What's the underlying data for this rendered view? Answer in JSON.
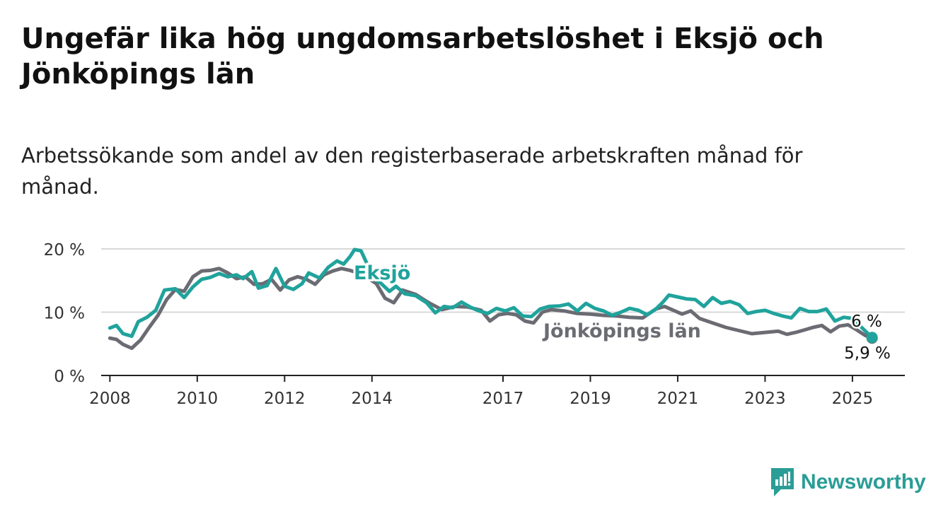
{
  "title": "Ungefär lika hög ungdomsarbetslöshet i Eksjö och Jönköpings län",
  "subtitle": "Arbetssökande som andel av den registerbaserade arbetskraften månad för månad.",
  "brand": {
    "name": "Newsworthy",
    "icon": "newsworthy-logo-icon",
    "color": "#2a9d96"
  },
  "chart_data": {
    "type": "line",
    "title": "Ungefär lika hög ungdomsarbetslöshet i Eksjö och Jönköpings län",
    "xlabel": "",
    "ylabel": "",
    "xlim": [
      2007.8,
      2026.2
    ],
    "ylim": [
      0,
      20
    ],
    "y_ticks": [
      {
        "value": 0,
        "label": "0 %"
      },
      {
        "value": 10,
        "label": "10 %"
      },
      {
        "value": 20,
        "label": "20 %"
      }
    ],
    "x_ticks": [
      {
        "value": 2008,
        "label": "2008"
      },
      {
        "value": 2010,
        "label": "2010"
      },
      {
        "value": 2012,
        "label": "2012"
      },
      {
        "value": 2014,
        "label": "2014"
      },
      {
        "value": 2017,
        "label": "2017"
      },
      {
        "value": 2019,
        "label": "2019"
      },
      {
        "value": 2021,
        "label": "2021"
      },
      {
        "value": 2023,
        "label": "2023"
      },
      {
        "value": 2025,
        "label": "2025"
      }
    ],
    "grid": true,
    "series": [
      {
        "name": "Jönköpings län",
        "color": "#6b6b73",
        "end_label": "5,9 %",
        "points": [
          [
            2008.0,
            5.9
          ],
          [
            2008.15,
            5.7
          ],
          [
            2008.3,
            4.9
          ],
          [
            2008.5,
            4.3
          ],
          [
            2008.7,
            5.6
          ],
          [
            2008.9,
            7.6
          ],
          [
            2009.1,
            9.5
          ],
          [
            2009.3,
            12.0
          ],
          [
            2009.5,
            13.6
          ],
          [
            2009.7,
            13.3
          ],
          [
            2009.9,
            15.6
          ],
          [
            2010.1,
            16.5
          ],
          [
            2010.3,
            16.6
          ],
          [
            2010.5,
            16.9
          ],
          [
            2010.7,
            16.2
          ],
          [
            2010.9,
            15.3
          ],
          [
            2011.1,
            15.6
          ],
          [
            2011.3,
            14.4
          ],
          [
            2011.5,
            14.5
          ],
          [
            2011.7,
            15.2
          ],
          [
            2011.9,
            13.5
          ],
          [
            2012.1,
            15.1
          ],
          [
            2012.3,
            15.6
          ],
          [
            2012.5,
            15.2
          ],
          [
            2012.7,
            14.4
          ],
          [
            2012.9,
            15.9
          ],
          [
            2013.1,
            16.5
          ],
          [
            2013.3,
            16.9
          ],
          [
            2013.5,
            16.6
          ],
          [
            2013.8,
            15.9
          ],
          [
            2014.1,
            14.5
          ],
          [
            2014.3,
            12.2
          ],
          [
            2014.5,
            11.5
          ],
          [
            2014.7,
            13.5
          ],
          [
            2015.0,
            12.8
          ],
          [
            2015.3,
            11.5
          ],
          [
            2015.6,
            10.4
          ],
          [
            2015.9,
            10.9
          ],
          [
            2016.2,
            10.8
          ],
          [
            2016.5,
            10.3
          ],
          [
            2016.7,
            8.6
          ],
          [
            2016.9,
            9.6
          ],
          [
            2017.1,
            9.8
          ],
          [
            2017.3,
            9.6
          ],
          [
            2017.5,
            8.6
          ],
          [
            2017.7,
            8.3
          ],
          [
            2017.9,
            10.0
          ],
          [
            2018.1,
            10.4
          ],
          [
            2018.4,
            10.2
          ],
          [
            2018.7,
            9.8
          ],
          [
            2019.0,
            9.7
          ],
          [
            2019.3,
            9.5
          ],
          [
            2019.6,
            9.4
          ],
          [
            2019.9,
            9.2
          ],
          [
            2020.2,
            9.1
          ],
          [
            2020.5,
            10.5
          ],
          [
            2020.7,
            10.9
          ],
          [
            2020.9,
            10.3
          ],
          [
            2021.1,
            9.7
          ],
          [
            2021.3,
            10.2
          ],
          [
            2021.5,
            9.0
          ],
          [
            2021.8,
            8.3
          ],
          [
            2022.1,
            7.6
          ],
          [
            2022.4,
            7.1
          ],
          [
            2022.7,
            6.6
          ],
          [
            2023.0,
            6.8
          ],
          [
            2023.3,
            7.0
          ],
          [
            2023.5,
            6.5
          ],
          [
            2023.7,
            6.8
          ],
          [
            2023.9,
            7.2
          ],
          [
            2024.1,
            7.6
          ],
          [
            2024.3,
            7.9
          ],
          [
            2024.5,
            6.9
          ],
          [
            2024.7,
            7.8
          ],
          [
            2024.9,
            8.0
          ],
          [
            2025.1,
            7.2
          ],
          [
            2025.3,
            6.3
          ],
          [
            2025.45,
            5.9
          ]
        ]
      },
      {
        "name": "Eksjö",
        "color": "#20a39c",
        "end_label": "6 %",
        "points": [
          [
            2008.0,
            7.5
          ],
          [
            2008.15,
            7.9
          ],
          [
            2008.3,
            6.6
          ],
          [
            2008.5,
            6.2
          ],
          [
            2008.65,
            8.5
          ],
          [
            2008.85,
            9.2
          ],
          [
            2009.05,
            10.3
          ],
          [
            2009.25,
            13.5
          ],
          [
            2009.5,
            13.7
          ],
          [
            2009.7,
            12.3
          ],
          [
            2009.9,
            14.0
          ],
          [
            2010.1,
            15.2
          ],
          [
            2010.3,
            15.5
          ],
          [
            2010.5,
            16.1
          ],
          [
            2010.7,
            15.6
          ],
          [
            2010.9,
            15.9
          ],
          [
            2011.05,
            15.3
          ],
          [
            2011.25,
            16.4
          ],
          [
            2011.4,
            13.8
          ],
          [
            2011.6,
            14.2
          ],
          [
            2011.8,
            16.9
          ],
          [
            2012.0,
            14.1
          ],
          [
            2012.2,
            13.6
          ],
          [
            2012.4,
            14.5
          ],
          [
            2012.55,
            16.2
          ],
          [
            2012.8,
            15.4
          ],
          [
            2013.0,
            17.1
          ],
          [
            2013.2,
            18.1
          ],
          [
            2013.35,
            17.6
          ],
          [
            2013.5,
            18.8
          ],
          [
            2013.6,
            19.9
          ],
          [
            2013.75,
            19.7
          ],
          [
            2013.85,
            18.2
          ],
          [
            2014.05,
            15.2
          ],
          [
            2014.2,
            14.6
          ],
          [
            2014.4,
            13.3
          ],
          [
            2014.55,
            14.1
          ],
          [
            2014.75,
            12.9
          ],
          [
            2015.0,
            12.6
          ],
          [
            2015.25,
            11.5
          ],
          [
            2015.45,
            9.9
          ],
          [
            2015.65,
            10.9
          ],
          [
            2015.85,
            10.7
          ],
          [
            2016.05,
            11.6
          ],
          [
            2016.25,
            10.8
          ],
          [
            2016.45,
            10.2
          ],
          [
            2016.65,
            9.8
          ],
          [
            2016.85,
            10.6
          ],
          [
            2017.05,
            10.2
          ],
          [
            2017.25,
            10.7
          ],
          [
            2017.45,
            9.4
          ],
          [
            2017.65,
            9.3
          ],
          [
            2017.85,
            10.5
          ],
          [
            2018.05,
            10.9
          ],
          [
            2018.3,
            11.0
          ],
          [
            2018.5,
            11.3
          ],
          [
            2018.7,
            10.2
          ],
          [
            2018.9,
            11.4
          ],
          [
            2019.1,
            10.6
          ],
          [
            2019.3,
            10.2
          ],
          [
            2019.5,
            9.5
          ],
          [
            2019.7,
            10.0
          ],
          [
            2019.9,
            10.6
          ],
          [
            2020.1,
            10.3
          ],
          [
            2020.3,
            9.6
          ],
          [
            2020.5,
            10.5
          ],
          [
            2020.65,
            11.5
          ],
          [
            2020.8,
            12.7
          ],
          [
            2021.0,
            12.4
          ],
          [
            2021.2,
            12.1
          ],
          [
            2021.4,
            12.0
          ],
          [
            2021.6,
            10.9
          ],
          [
            2021.8,
            12.3
          ],
          [
            2022.0,
            11.4
          ],
          [
            2022.2,
            11.7
          ],
          [
            2022.4,
            11.2
          ],
          [
            2022.6,
            9.8
          ],
          [
            2022.8,
            10.1
          ],
          [
            2023.0,
            10.3
          ],
          [
            2023.2,
            9.8
          ],
          [
            2023.4,
            9.4
          ],
          [
            2023.6,
            9.1
          ],
          [
            2023.8,
            10.6
          ],
          [
            2024.0,
            10.1
          ],
          [
            2024.2,
            10.1
          ],
          [
            2024.4,
            10.5
          ],
          [
            2024.6,
            8.6
          ],
          [
            2024.8,
            9.2
          ],
          [
            2025.0,
            9.0
          ],
          [
            2025.15,
            8.0
          ],
          [
            2025.3,
            7.0
          ],
          [
            2025.45,
            6.0
          ]
        ]
      }
    ],
    "annotations": [
      {
        "text": "Eksjö",
        "series": "Eksjö"
      },
      {
        "text": "Jönköpings län",
        "series": "Jönköpings län"
      }
    ]
  }
}
